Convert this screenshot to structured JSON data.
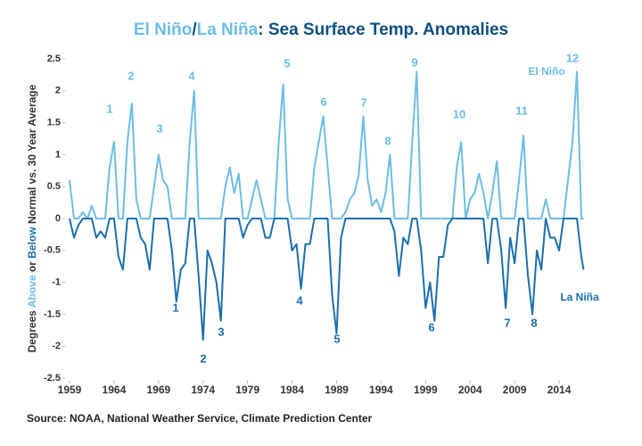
{
  "chart_data": {
    "type": "line",
    "title_parts": [
      "El Niño",
      "/",
      "La Niña",
      ": Sea Surface Temp. Anomalies"
    ],
    "y_label_parts": [
      "Degrees ",
      "Above",
      " or ",
      "Below",
      " Normal vs. 30 Year Average"
    ],
    "source": "Source: NOAA, National Weather Service, Climate Prediction Center",
    "x": [
      1959,
      1959.5,
      1960,
      1960.5,
      1961,
      1961.5,
      1962,
      1962.5,
      1963,
      1963.5,
      1964,
      1964.5,
      1965,
      1965.5,
      1966,
      1966.5,
      1967,
      1967.5,
      1968,
      1968.5,
      1969,
      1969.5,
      1970,
      1970.5,
      1971,
      1971.5,
      1972,
      1972.5,
      1973,
      1973.5,
      1974,
      1974.5,
      1975,
      1975.5,
      1976,
      1976.5,
      1977,
      1977.5,
      1978,
      1978.5,
      1979,
      1979.5,
      1980,
      1980.5,
      1981,
      1981.5,
      1982,
      1982.5,
      1983,
      1983.5,
      1984,
      1984.5,
      1985,
      1985.5,
      1986,
      1986.5,
      1987,
      1987.5,
      1988,
      1988.5,
      1989,
      1989.5,
      1990,
      1990.5,
      1991,
      1991.5,
      1992,
      1992.5,
      1993,
      1993.5,
      1994,
      1994.5,
      1995,
      1995.5,
      1996,
      1996.5,
      1997,
      1997.5,
      1998,
      1998.5,
      1999,
      1999.5,
      2000,
      2000.5,
      2001,
      2001.5,
      2002,
      2002.5,
      2003,
      2003.5,
      2004,
      2004.5,
      2005,
      2005.5,
      2006,
      2006.5,
      2007,
      2007.5,
      2008,
      2008.5,
      2009,
      2009.5,
      2010,
      2010.5,
      2011,
      2011.5,
      2012,
      2012.5,
      2013,
      2013.5,
      2014,
      2014.5,
      2015,
      2015.5,
      2016,
      2016.5,
      2016.75
    ],
    "series": [
      {
        "name": "El Niño",
        "color": "#6cbde6",
        "values": [
          0.6,
          0,
          0,
          0.1,
          0,
          0.2,
          0,
          0,
          0,
          0.8,
          1.2,
          0,
          0,
          1.2,
          1.8,
          0.3,
          0,
          0,
          0,
          0.5,
          1.0,
          0.6,
          0.5,
          0,
          0,
          0,
          0,
          1.2,
          2.0,
          0,
          0,
          0,
          0,
          0,
          0,
          0.5,
          0.8,
          0.4,
          0.7,
          0,
          0,
          0.3,
          0.6,
          0.3,
          0,
          0,
          0,
          1.2,
          2.1,
          0.3,
          0,
          0,
          0,
          0,
          0,
          0.8,
          1.2,
          1.6,
          0.8,
          0,
          0,
          0,
          0.1,
          0.3,
          0.4,
          0.7,
          1.6,
          0.6,
          0.2,
          0.3,
          0.1,
          0.4,
          1.0,
          0,
          0,
          0,
          0,
          1.2,
          2.3,
          0,
          0,
          0,
          0,
          0,
          0,
          0,
          0,
          0.8,
          1.2,
          0,
          0.3,
          0.4,
          0.7,
          0.4,
          0,
          0.4,
          0.9,
          0,
          0,
          0,
          0,
          0.6,
          1.3,
          0,
          0,
          0,
          0,
          0.3,
          0,
          0,
          0,
          0,
          0.6,
          1.2,
          2.3,
          0,
          0
        ],
        "event_labels": [
          "1",
          "2",
          "3",
          "4",
          "5",
          "6",
          "7",
          "8",
          "9",
          "10",
          "11",
          "12"
        ]
      },
      {
        "name": "La Niña",
        "color": "#1a6fae",
        "values": [
          0,
          -0.3,
          -0.1,
          0,
          0,
          0,
          -0.3,
          -0.2,
          -0.3,
          0,
          0,
          -0.6,
          -0.8,
          0,
          0,
          0,
          -0.3,
          -0.4,
          -0.8,
          0,
          0,
          0,
          0,
          -0.5,
          -1.3,
          -0.8,
          -0.7,
          0,
          0,
          -0.9,
          -1.9,
          -0.5,
          -0.7,
          -1.0,
          -1.6,
          0,
          0,
          0,
          0,
          -0.3,
          -0.1,
          0,
          0,
          0,
          -0.3,
          -0.3,
          0,
          0,
          0,
          0,
          -0.5,
          -0.4,
          -1.1,
          -0.4,
          -0.4,
          0,
          0,
          0,
          0,
          -1.2,
          -1.8,
          -0.3,
          0,
          0,
          0,
          0,
          0,
          0,
          0,
          0,
          0,
          0,
          0,
          -0.2,
          -0.9,
          -0.3,
          -0.4,
          0,
          0,
          -0.5,
          -1.4,
          -1.0,
          -1.6,
          -0.6,
          -0.6,
          -0.1,
          0,
          0,
          0,
          0,
          0,
          0,
          0,
          0,
          -0.7,
          0,
          0,
          -0.5,
          -1.4,
          -0.3,
          -0.7,
          0,
          0,
          -0.9,
          -1.5,
          -0.5,
          -0.8,
          0,
          -0.3,
          -0.3,
          -0.5,
          0,
          0,
          0,
          0,
          -0.6,
          -0.8
        ],
        "event_labels": [
          "1",
          "2",
          "3",
          "4",
          "5",
          "6",
          "7",
          "8"
        ]
      }
    ],
    "xlim": [
      1959,
      2016.8
    ],
    "ylim": [
      -2.5,
      2.5
    ],
    "xticks": [
      1959,
      1964,
      1969,
      1974,
      1979,
      1984,
      1989,
      1994,
      1999,
      2004,
      2009,
      2014
    ],
    "yticks": [
      2.5,
      2,
      1.5,
      1,
      0.5,
      0,
      -0.5,
      -1,
      -1.5,
      -2,
      -2.5
    ],
    "grid": false
  }
}
